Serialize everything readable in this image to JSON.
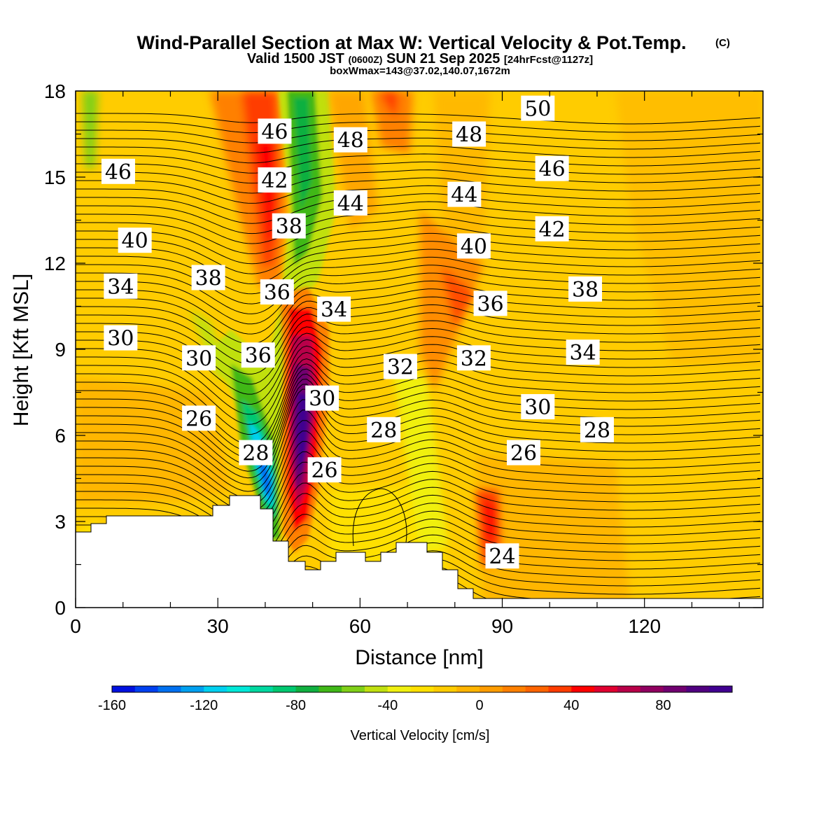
{
  "chart_data": {
    "type": "heatmap",
    "title": "Wind-Parallel Section at Max W: Vertical Velocity & Pot.Temp.",
    "title_mark": "(C)",
    "subtitle_parts": [
      "Valid 1500 JST",
      "(0600Z)",
      "SUN 21 Sep 2025",
      "[24hrFcst@1127z]"
    ],
    "subtitle2": "boxWmax=143@37.02,140.07,1672m",
    "xlabel": "Distance [nm]",
    "ylabel": "Height [Kft MSL]",
    "xlim": [
      0,
      145
    ],
    "ylim": [
      0,
      18
    ],
    "x_ticks": [
      "0",
      "30",
      "60",
      "90",
      "120"
    ],
    "y_ticks": [
      "0",
      "3",
      "6",
      "9",
      "12",
      "15",
      "18"
    ],
    "colorbar": {
      "label": "Vertical Velocity [cm/s]",
      "min": -160,
      "max": 110,
      "step": 10,
      "tick_labels": [
        "-160",
        "-120",
        "-80",
        "-40",
        "0",
        "40",
        "80"
      ],
      "colors": [
        "#0010e0",
        "#0040f0",
        "#0070f0",
        "#00a0f0",
        "#00d0f0",
        "#00e8d8",
        "#00d8a0",
        "#00c870",
        "#10b040",
        "#40b818",
        "#80d018",
        "#c0e010",
        "#f0f010",
        "#ffe000",
        "#ffcc00",
        "#ffb400",
        "#ff9c00",
        "#ff8000",
        "#ff6400",
        "#ff3c00",
        "#ff0000",
        "#e00030",
        "#b80048",
        "#900060",
        "#700070",
        "#500080",
        "#400090"
      ]
    },
    "theta_labels": [
      {
        "text": "46",
        "x": 9,
        "y": 15.2
      },
      {
        "text": "40",
        "x": 12.5,
        "y": 12.8
      },
      {
        "text": "34",
        "x": 9.5,
        "y": 11.2
      },
      {
        "text": "30",
        "x": 9.5,
        "y": 9.4
      },
      {
        "text": "38",
        "x": 28,
        "y": 11.5
      },
      {
        "text": "30",
        "x": 26,
        "y": 8.7
      },
      {
        "text": "26",
        "x": 26,
        "y": 6.6
      },
      {
        "text": "46",
        "x": 42,
        "y": 16.6
      },
      {
        "text": "42",
        "x": 42,
        "y": 14.9
      },
      {
        "text": "38",
        "x": 45,
        "y": 13.3
      },
      {
        "text": "36",
        "x": 42.5,
        "y": 11.0
      },
      {
        "text": "36",
        "x": 38.5,
        "y": 8.8
      },
      {
        "text": "28",
        "x": 38,
        "y": 5.4
      },
      {
        "text": "34",
        "x": 54.5,
        "y": 10.4
      },
      {
        "text": "30",
        "x": 52,
        "y": 7.3
      },
      {
        "text": "26",
        "x": 52.5,
        "y": 4.8
      },
      {
        "text": "48",
        "x": 58,
        "y": 16.3
      },
      {
        "text": "44",
        "x": 58,
        "y": 14.1
      },
      {
        "text": "32",
        "x": 68.5,
        "y": 8.4
      },
      {
        "text": "28",
        "x": 65,
        "y": 6.2
      },
      {
        "text": "48",
        "x": 83,
        "y": 16.5
      },
      {
        "text": "44",
        "x": 82,
        "y": 14.4
      },
      {
        "text": "40",
        "x": 84,
        "y": 12.6
      },
      {
        "text": "36",
        "x": 87.5,
        "y": 10.6
      },
      {
        "text": "32",
        "x": 84,
        "y": 8.7
      },
      {
        "text": "26",
        "x": 94.5,
        "y": 5.4
      },
      {
        "text": "24",
        "x": 90,
        "y": 1.8
      },
      {
        "text": "50",
        "x": 97.5,
        "y": 17.4
      },
      {
        "text": "46",
        "x": 100.5,
        "y": 15.3
      },
      {
        "text": "42",
        "x": 100.5,
        "y": 13.2
      },
      {
        "text": "38",
        "x": 107.5,
        "y": 11.1
      },
      {
        "text": "34",
        "x": 107,
        "y": 8.9
      },
      {
        "text": "30",
        "x": 97.5,
        "y": 7.0
      },
      {
        "text": "28",
        "x": 110,
        "y": 6.2
      }
    ]
  }
}
